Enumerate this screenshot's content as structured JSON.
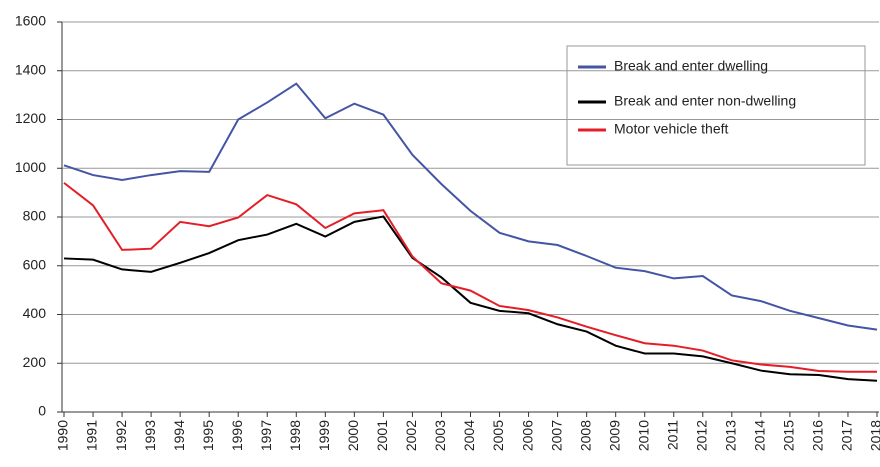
{
  "chart_data": {
    "type": "line",
    "categories": [
      "1990",
      "1991",
      "1992",
      "1993",
      "1994",
      "1995",
      "1996",
      "1997",
      "1998",
      "1999",
      "2000",
      "2001",
      "2002",
      "2003",
      "2004",
      "2005",
      "2006",
      "2007",
      "2008",
      "2009",
      "2010",
      "2011",
      "2012",
      "2013",
      "2014",
      "2015",
      "2016",
      "2017",
      "2018"
    ],
    "series": [
      {
        "name": "Break and enter dwelling",
        "color": "#4455a5",
        "values": [
          1012,
          972,
          952,
          972,
          988,
          985,
          1200,
          1270,
          1347,
          1205,
          1265,
          1220,
          1055,
          935,
          825,
          735,
          700,
          685,
          640,
          592,
          578,
          548,
          558,
          478,
          455,
          415,
          385,
          355,
          338
        ]
      },
      {
        "name": "Break and enter non-dwelling",
        "color": "#000000",
        "values": [
          630,
          625,
          585,
          575,
          612,
          652,
          705,
          728,
          772,
          720,
          780,
          802,
          632,
          552,
          448,
          415,
          405,
          360,
          330,
          272,
          240,
          240,
          228,
          200,
          170,
          155,
          152,
          135,
          128
        ]
      },
      {
        "name": "Motor vehicle theft",
        "color": "#e41e26",
        "values": [
          940,
          848,
          665,
          670,
          780,
          762,
          798,
          890,
          852,
          755,
          815,
          828,
          638,
          528,
          498,
          435,
          418,
          388,
          350,
          315,
          282,
          272,
          252,
          212,
          195,
          185,
          168,
          165,
          165
        ]
      }
    ],
    "ylim": [
      0,
      1600
    ],
    "yticks": [
      0,
      200,
      400,
      600,
      800,
      1000,
      1200,
      1400,
      1600
    ],
    "grid": true
  }
}
